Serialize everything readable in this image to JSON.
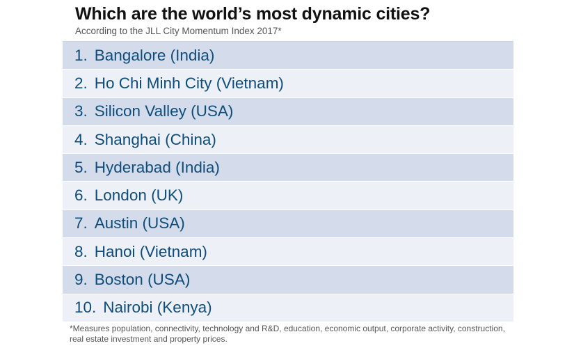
{
  "header": {
    "title": "Which are the world’s most dynamic cities?",
    "subtitle": "According to the JLL City Momentum Index 2017*"
  },
  "ranking": [
    {
      "rank": "1.",
      "city": "Bangalore (India)"
    },
    {
      "rank": "2.",
      "city": "Ho Chi Minh City (Vietnam)"
    },
    {
      "rank": "3.",
      "city": "Silicon Valley (USA)"
    },
    {
      "rank": "4.",
      "city": "Shanghai (China)"
    },
    {
      "rank": "5.",
      "city": "Hyderabad (India)"
    },
    {
      "rank": "6.",
      "city": "London (UK)"
    },
    {
      "rank": "7.",
      "city": "Austin (USA)"
    },
    {
      "rank": "8.",
      "city": "Hanoi (Vietnam)"
    },
    {
      "rank": "9.",
      "city": "Boston (USA)"
    },
    {
      "rank": "10.",
      "city": "Nairobi (Kenya)"
    }
  ],
  "footnote": "*Measures population, connectivity, technology and R&D, education, economic output, corporate activity, construction, real estate investment and property prices.",
  "colors": {
    "row_dark": "#d4dbea",
    "row_light": "#edf0f6",
    "text_blue": "#0e4d7a"
  }
}
